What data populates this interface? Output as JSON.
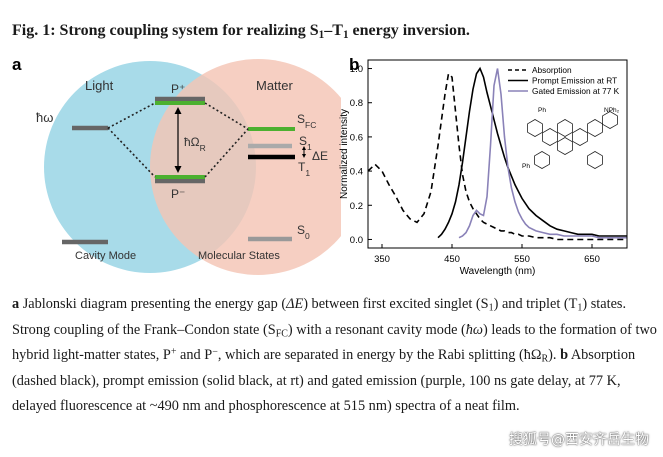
{
  "figure_title": [
    {
      "text": "Fig. 1: Strong coupling system for realizing S",
      "style": "normal"
    },
    {
      "text": "1",
      "style": "sub"
    },
    {
      "text": "–T",
      "style": "normal"
    },
    {
      "text": "1",
      "style": "sub"
    },
    {
      "text": " energy inversion.",
      "style": "normal"
    }
  ],
  "panel_a": {
    "label": "a",
    "light": "Light",
    "matter": "Matter",
    "hbar_omega": "ħω",
    "p_plus": "P⁺",
    "p_minus": "P⁻",
    "rabi": {
      "main": "ħΩ",
      "sub": "R"
    },
    "s_fc": {
      "main": "S",
      "sub": "FC"
    },
    "s1": {
      "main": "S",
      "sub": "1"
    },
    "delta_e": "ΔE",
    "t1": {
      "main": "T",
      "sub": "1"
    },
    "s0": {
      "main": "S",
      "sub": "0"
    },
    "cavity_mode": "Cavity Mode",
    "molecular_states": "Molecular States"
  },
  "chart_data": {
    "type": "line",
    "panel_label": "b",
    "xlabel": "Wavelength (nm)",
    "ylabel": "Normalized intensity",
    "x": [
      330,
      340,
      350,
      360,
      370,
      380,
      390,
      400,
      410,
      420,
      430,
      435,
      440,
      445,
      450,
      455,
      460,
      465,
      470,
      475,
      480,
      485,
      490,
      495,
      500,
      505,
      510,
      515,
      520,
      525,
      530,
      535,
      540,
      545,
      550,
      555,
      560,
      570,
      580,
      590,
      600,
      610,
      620,
      630,
      640,
      650,
      660,
      670,
      680,
      690,
      700
    ],
    "series": [
      {
        "name": "Absorption",
        "color": "#000000",
        "style": "dashed",
        "values": [
          0.4,
          0.44,
          0.4,
          0.32,
          0.25,
          0.17,
          0.12,
          0.1,
          0.15,
          0.28,
          0.55,
          0.7,
          0.85,
          0.97,
          0.95,
          0.75,
          0.55,
          0.38,
          0.28,
          0.22,
          0.18,
          0.15,
          0.12,
          0.1,
          0.09,
          0.08,
          0.07,
          0.06,
          0.05,
          0.05,
          0.04,
          0.04,
          0.03,
          0.03,
          0.02,
          0.02,
          0.02,
          0.01,
          0.01,
          0.01,
          0,
          0,
          0,
          0,
          0,
          0,
          0,
          0,
          0,
          0,
          0
        ]
      },
      {
        "name": "Prompt Emission at RT",
        "color": "#000000",
        "style": "solid",
        "values": [
          null,
          null,
          null,
          null,
          null,
          null,
          null,
          null,
          null,
          null,
          0.01,
          0.03,
          0.06,
          0.1,
          0.15,
          0.22,
          0.32,
          0.45,
          0.6,
          0.75,
          0.88,
          0.97,
          1.0,
          0.95,
          0.86,
          0.78,
          0.7,
          0.62,
          0.55,
          0.48,
          0.42,
          0.37,
          0.32,
          0.28,
          0.24,
          0.21,
          0.18,
          0.14,
          0.11,
          0.08,
          0.06,
          0.05,
          0.04,
          0.03,
          0.03,
          0.03,
          0.02,
          0.02,
          0.02,
          0.02,
          0.02
        ]
      },
      {
        "name": "Gated Emission at 77 K",
        "color": "#8a82b8",
        "style": "solid",
        "values": [
          null,
          null,
          null,
          null,
          null,
          null,
          null,
          null,
          null,
          null,
          null,
          null,
          null,
          null,
          null,
          null,
          0.01,
          0.02,
          0.04,
          0.08,
          0.14,
          0.17,
          0.15,
          0.14,
          0.25,
          0.55,
          0.9,
          1.0,
          0.85,
          0.6,
          0.42,
          0.3,
          0.22,
          0.16,
          0.12,
          0.09,
          0.07,
          0.05,
          0.04,
          0.03,
          0.03,
          0.02,
          0.02,
          0.02,
          0.02,
          0.02,
          0.01,
          0.01,
          0.01,
          0.01,
          0.01
        ]
      }
    ],
    "xlim": [
      330,
      700
    ],
    "ylim": [
      -0.05,
      1.05
    ],
    "xticks": [
      350,
      450,
      550,
      650
    ],
    "yticks": [
      {
        "value": 0,
        "label": "0.0"
      },
      0.2,
      0.4,
      0.6,
      0.8,
      {
        "value": 1,
        "label": "1.0"
      }
    ],
    "legend": "top-right",
    "inset_labels": [
      "Ph",
      "NPh₂",
      "Ph"
    ]
  },
  "caption": [
    {
      "text": "a",
      "style": "bold"
    },
    {
      "text": " Jablonski diagram presenting the energy gap (",
      "style": "normal"
    },
    {
      "text": "ΔE",
      "style": "italic"
    },
    {
      "text": ") between first excited singlet (S",
      "style": "normal"
    },
    {
      "text": "1",
      "style": "sub"
    },
    {
      "text": ") and triplet (T",
      "style": "normal"
    },
    {
      "text": "1",
      "style": "sub"
    },
    {
      "text": ") states. Strong coupling of the Frank–Condon state (S",
      "style": "normal"
    },
    {
      "text": "FC",
      "style": "sub"
    },
    {
      "text": ") with a resonant cavity mode (",
      "style": "normal"
    },
    {
      "text": "ħω",
      "style": "italic"
    },
    {
      "text": ") leads to the formation of two hybrid light-matter states, P",
      "style": "normal"
    },
    {
      "text": "+",
      "style": "sup"
    },
    {
      "text": " and P",
      "style": "normal"
    },
    {
      "text": "−",
      "style": "sup"
    },
    {
      "text": ", which are separated in energy by the Rabi splitting (ħΩ",
      "style": "normal"
    },
    {
      "text": "R",
      "style": "sub"
    },
    {
      "text": "). ",
      "style": "normal"
    },
    {
      "text": "b",
      "style": "bold"
    },
    {
      "text": " Absorption (dashed black), prompt emission (solid black, at rt) and gated emission (purple, 100 ns gate delay, at 77 K, delayed fluorescence at ~490 nm and phosphorescence at 515 nm) spectra of a neat film.",
      "style": "normal"
    }
  ],
  "watermark": "搜狐号@西安齐岳生物"
}
